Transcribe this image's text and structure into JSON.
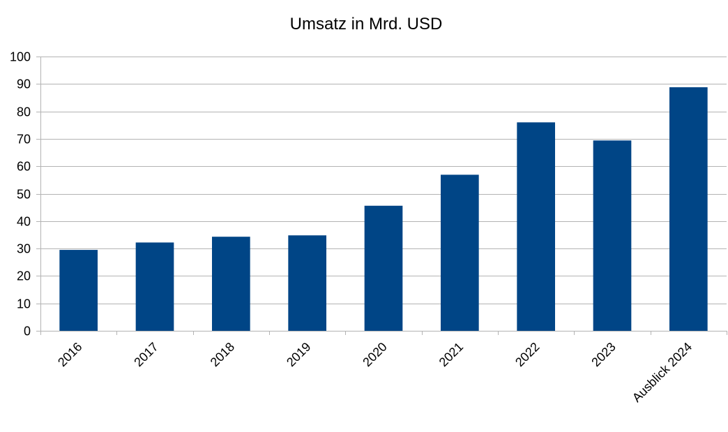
{
  "chart_data": {
    "type": "bar",
    "title": "Umsatz in Mrd. USD",
    "xlabel": "",
    "ylabel": "",
    "categories": [
      "2016",
      "2017",
      "2018",
      "2019",
      "2020",
      "2021",
      "2022",
      "2023",
      "Ausblick 2024"
    ],
    "values": [
      29.5,
      32.2,
      34.3,
      34.8,
      45.6,
      56.9,
      76.0,
      69.4,
      88.8
    ],
    "ylim": [
      0,
      100
    ],
    "yticks": [
      "0",
      "10",
      "20",
      "30",
      "40",
      "50",
      "60",
      "70",
      "80",
      "90",
      "100"
    ],
    "grid": true,
    "legend": "none",
    "bar_color": "#004586",
    "grid_color": "#b3b3b3"
  }
}
